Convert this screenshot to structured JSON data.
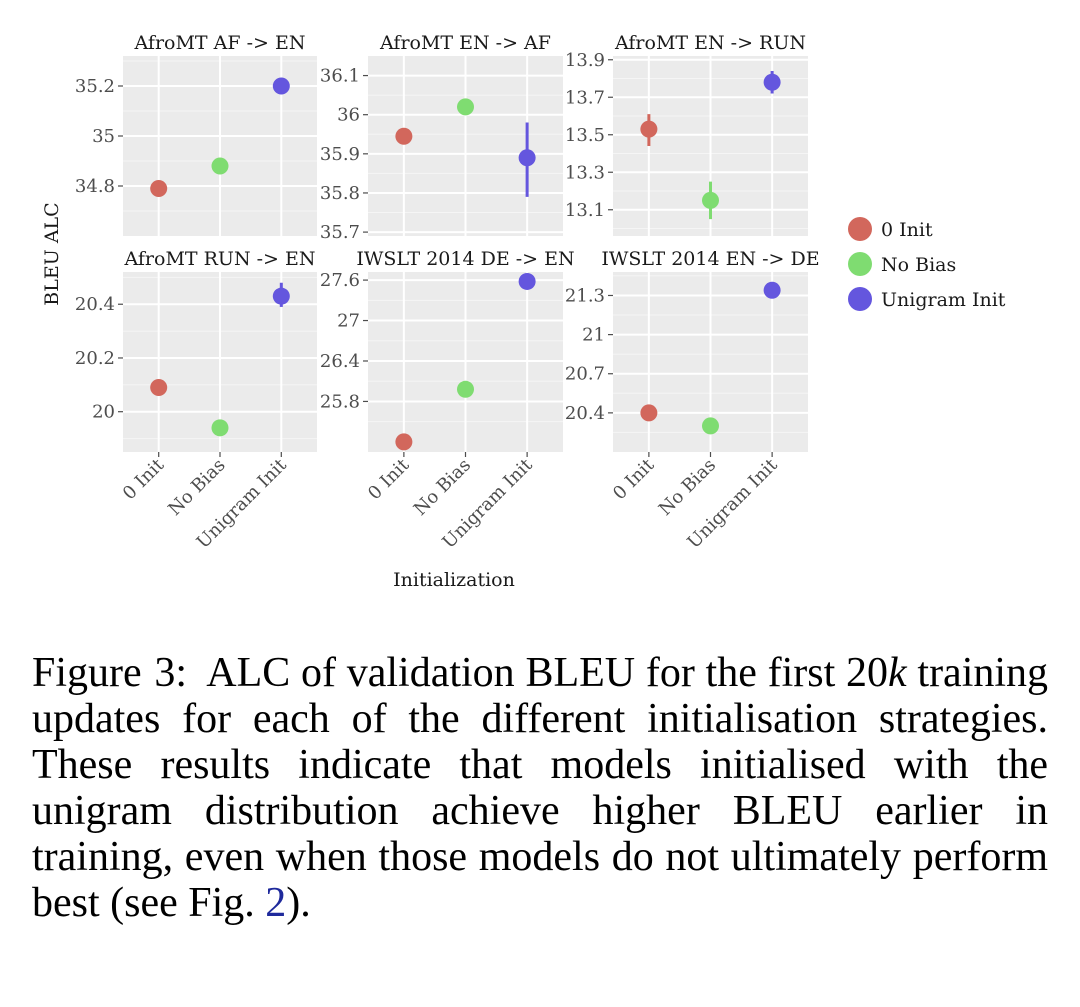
{
  "chart_data": {
    "type": "scatter",
    "xlabel": "Initialization",
    "ylabel": "BLEU ALC",
    "categories": [
      "0 Init",
      "No Bias",
      "Unigram Init"
    ],
    "legend": {
      "placement": "right",
      "entries": [
        {
          "name": "0 Init",
          "color": "#d2675c"
        },
        {
          "name": "No Bias",
          "color": "#7fdc71"
        },
        {
          "name": "Unigram Init",
          "color": "#6456de"
        }
      ]
    },
    "panels": [
      {
        "title": "AfroMT AF -> EN",
        "ylim": [
          34.6,
          35.32
        ],
        "yticks": [
          34.8,
          35,
          35.2
        ],
        "ytick_labels": [
          "34.8",
          "35",
          "35.2"
        ],
        "points": [
          {
            "series": "0 Init",
            "y": 34.79,
            "err": null
          },
          {
            "series": "No Bias",
            "y": 34.88,
            "err": null
          },
          {
            "series": "Unigram Init",
            "y": 35.2,
            "err": null
          }
        ]
      },
      {
        "title": "AfroMT EN -> AF",
        "ylim": [
          35.69,
          36.15
        ],
        "yticks": [
          35.7,
          35.8,
          35.9,
          36,
          36.1
        ],
        "ytick_labels": [
          "35.7",
          "35.8",
          "35.9",
          "36",
          "36.1"
        ],
        "points": [
          {
            "series": "0 Init",
            "y": 35.945,
            "err": null
          },
          {
            "series": "No Bias",
            "y": 36.02,
            "err": null
          },
          {
            "series": "Unigram Init",
            "y": 35.89,
            "err": [
              35.79,
              35.98
            ]
          }
        ]
      },
      {
        "title": "AfroMT EN -> RUN",
        "ylim": [
          12.96,
          13.92
        ],
        "yticks": [
          13.1,
          13.3,
          13.5,
          13.7,
          13.9
        ],
        "ytick_labels": [
          "13.1",
          "13.3",
          "13.5",
          "13.7",
          "13.9"
        ],
        "points": [
          {
            "series": "0 Init",
            "y": 13.53,
            "err": [
              13.44,
              13.61
            ]
          },
          {
            "series": "No Bias",
            "y": 13.15,
            "err": [
              13.05,
              13.25
            ]
          },
          {
            "series": "Unigram Init",
            "y": 13.78,
            "err": [
              13.72,
              13.84
            ]
          }
        ]
      },
      {
        "title": "AfroMT RUN -> EN",
        "ylim": [
          19.85,
          20.52
        ],
        "yticks": [
          20,
          20.2,
          20.4
        ],
        "ytick_labels": [
          "20",
          "20.2",
          "20.4"
        ],
        "points": [
          {
            "series": "0 Init",
            "y": 20.09,
            "err": null
          },
          {
            "series": "No Bias",
            "y": 19.94,
            "err": null
          },
          {
            "series": "Unigram Init",
            "y": 20.43,
            "err": [
              20.39,
              20.48
            ]
          }
        ]
      },
      {
        "title": "IWSLT 2014 DE -> EN",
        "ylim": [
          25.05,
          27.72
        ],
        "yticks": [
          25.8,
          26.4,
          27,
          27.6
        ],
        "ytick_labels": [
          "25.8",
          "26.4",
          "27",
          "27.6"
        ],
        "points": [
          {
            "series": "0 Init",
            "y": 25.2,
            "err": null
          },
          {
            "series": "No Bias",
            "y": 25.98,
            "err": null
          },
          {
            "series": "Unigram Init",
            "y": 27.58,
            "err": null
          }
        ]
      },
      {
        "title": "IWSLT 2014 EN -> DE",
        "ylim": [
          20.1,
          21.48
        ],
        "yticks": [
          20.4,
          20.7,
          21,
          21.3
        ],
        "ytick_labels": [
          "20.4",
          "20.7",
          "21",
          "21.3"
        ],
        "points": [
          {
            "series": "0 Init",
            "y": 20.4,
            "err": null
          },
          {
            "series": "No Bias",
            "y": 20.3,
            "err": null
          },
          {
            "series": "Unigram Init",
            "y": 21.34,
            "err": [
              21.29,
              21.39
            ]
          }
        ]
      }
    ]
  },
  "caption": {
    "label": "Figure 3:",
    "t1": "ALC of validation",
    "bleu": "BLEU",
    "t2": "for the first 20",
    "k": "k",
    "t3": "training updates for each of the different initialisation strategies. These results indicate that models initialised with the unigram distribution achieve higher",
    "bleu2": "BLEU",
    "t4": "earlier in training, even when those models do not ultimately perform best (see Fig.",
    "ref": "2",
    "t5": ")."
  }
}
